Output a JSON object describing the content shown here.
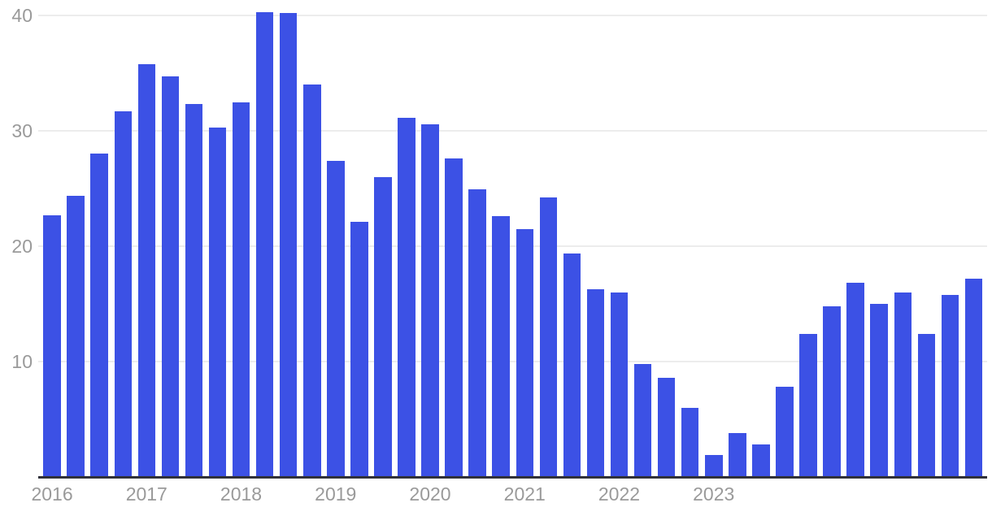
{
  "chart_data": {
    "type": "bar",
    "title": "",
    "xlabel": "",
    "ylabel": "",
    "values": [
      22.7,
      24.4,
      28.0,
      31.7,
      35.8,
      34.7,
      32.3,
      30.3,
      32.5,
      40.3,
      40.2,
      34.0,
      27.4,
      22.1,
      26.0,
      31.1,
      30.6,
      27.6,
      24.9,
      22.6,
      21.5,
      24.2,
      19.4,
      16.3,
      16.0,
      9.8,
      8.6,
      6.0,
      1.9,
      3.8,
      2.8,
      7.8,
      12.4,
      14.8,
      16.8,
      15.0,
      16.0,
      12.4,
      15.8,
      17.2
    ],
    "bars_per_label_interval": 4,
    "x_tick_labels": [
      "2016",
      "2017",
      "2018",
      "2019",
      "2020",
      "2021",
      "2022",
      "2023"
    ],
    "x_tick_bar_index": [
      0,
      4,
      8,
      12,
      16,
      20,
      24,
      28
    ],
    "y_ticks": [
      10,
      20,
      30,
      40
    ],
    "ylim": [
      0,
      41
    ],
    "grid": true,
    "legend": "none",
    "colors": {
      "bar": "#3C51E5",
      "gridline": "#ECECEC",
      "axis_line": "#30313A",
      "tick_text": "#9A9A9A",
      "background": "#FFFFFF"
    }
  }
}
